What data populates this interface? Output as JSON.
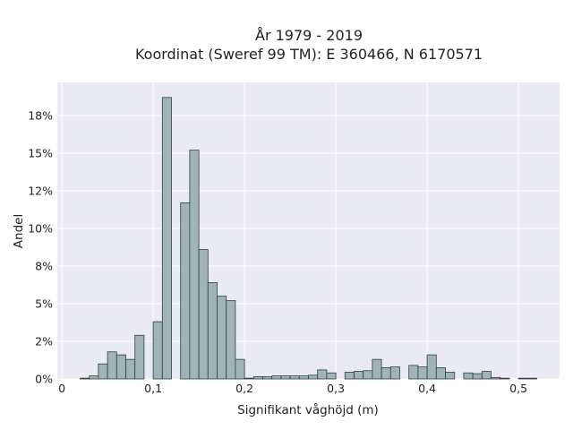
{
  "chart_data": {
    "type": "bar",
    "title_line1": "År 1979 - 2019",
    "title_line2": "Koordinat (Sweref 99 TM): E 360466, N 6170571",
    "xlabel": "Signifikant våghöjd (m)",
    "ylabel": "Andel",
    "bin_width": 0.01,
    "xlim": [
      -0.005,
      0.545
    ],
    "ylim": [
      0,
      0.197
    ],
    "x_ticks": [
      {
        "value": 0,
        "label": "0"
      },
      {
        "value": 0.1,
        "label": "0,1"
      },
      {
        "value": 0.2,
        "label": "0,2"
      },
      {
        "value": 0.3,
        "label": "0,3"
      },
      {
        "value": 0.4,
        "label": "0,4"
      },
      {
        "value": 0.5,
        "label": "0,5"
      }
    ],
    "y_ticks": [
      {
        "value": 0,
        "label": "0%"
      },
      {
        "value": 0.025,
        "label": "2%"
      },
      {
        "value": 0.05,
        "label": "5%"
      },
      {
        "value": 0.075,
        "label": "8%"
      },
      {
        "value": 0.1,
        "label": "10%"
      },
      {
        "value": 0.125,
        "label": "12%"
      },
      {
        "value": 0.15,
        "label": "15%"
      },
      {
        "value": 0.175,
        "label": "18%"
      }
    ],
    "grid": true,
    "bar_color": "#9fb5b5",
    "bar_edge_color": "#2f3f3f",
    "plot_background": "#eaeaf2",
    "bin_starts": [
      0.02,
      0.03,
      0.04,
      0.05,
      0.06,
      0.07,
      0.08,
      0.09,
      0.1,
      0.11,
      0.12,
      0.13,
      0.14,
      0.15,
      0.16,
      0.17,
      0.18,
      0.19,
      0.2,
      0.21,
      0.22,
      0.23,
      0.24,
      0.25,
      0.26,
      0.27,
      0.28,
      0.29,
      0.3,
      0.31,
      0.32,
      0.33,
      0.34,
      0.35,
      0.36,
      0.37,
      0.38,
      0.39,
      0.4,
      0.41,
      0.42,
      0.43,
      0.44,
      0.45,
      0.46,
      0.47,
      0.48,
      0.49,
      0.5,
      0.51
    ],
    "values": [
      0.0005,
      0.002,
      0.01,
      0.018,
      0.016,
      0.013,
      0.029,
      0.0,
      0.038,
      0.187,
      0.0,
      0.117,
      0.152,
      0.086,
      0.064,
      0.055,
      0.052,
      0.013,
      0.0005,
      0.0015,
      0.0015,
      0.002,
      0.002,
      0.002,
      0.002,
      0.0025,
      0.006,
      0.004,
      0.0,
      0.0045,
      0.005,
      0.0055,
      0.013,
      0.0075,
      0.008,
      0.0,
      0.009,
      0.008,
      0.016,
      0.0075,
      0.0045,
      0.0,
      0.004,
      0.0035,
      0.005,
      0.001,
      0.0005,
      0.0,
      0.0005,
      0.0005
    ]
  }
}
